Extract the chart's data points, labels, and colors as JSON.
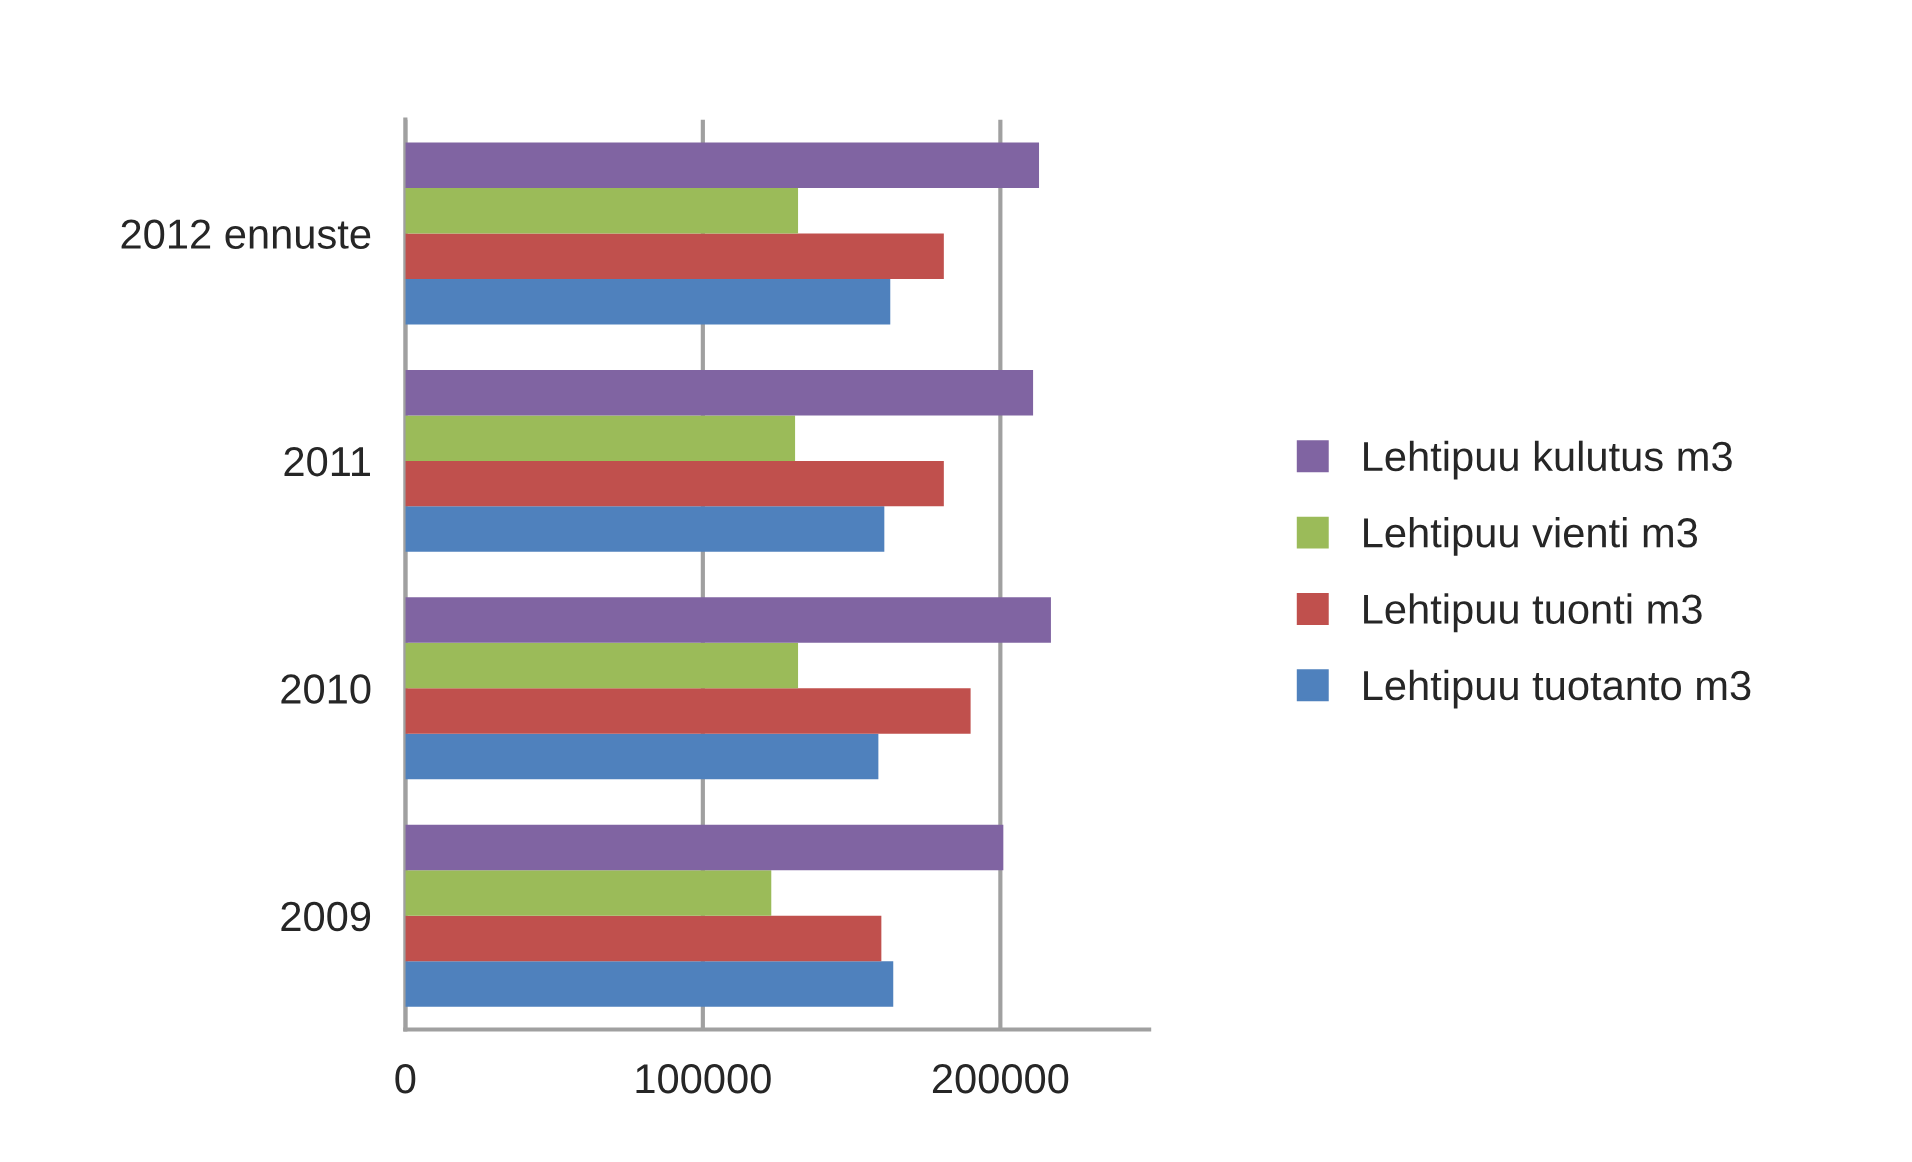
{
  "chart_data": {
    "type": "bar",
    "orientation": "horizontal",
    "categories": [
      "2012 ennuste",
      "2011",
      "2010",
      "2009"
    ],
    "series": [
      {
        "name": "Lehtipuu tuotanto m3",
        "color": "#4f81bd",
        "values": [
          163000,
          161000,
          159000,
          164000
        ]
      },
      {
        "name": "Lehtipuu tuonti m3",
        "color": "#c0504d",
        "values": [
          181000,
          181000,
          190000,
          160000
        ]
      },
      {
        "name": "Lehtipuu vienti m3",
        "color": "#9bbb59",
        "values": [
          132000,
          131000,
          132000,
          123000
        ]
      },
      {
        "name": "Lehtipuu kulutus m3",
        "color": "#8064a2",
        "values": [
          213000,
          211000,
          217000,
          201000
        ]
      }
    ],
    "xlim": [
      0,
      250000
    ],
    "xticks": [
      0,
      100000,
      200000
    ],
    "grid": "x",
    "legend": "right"
  }
}
